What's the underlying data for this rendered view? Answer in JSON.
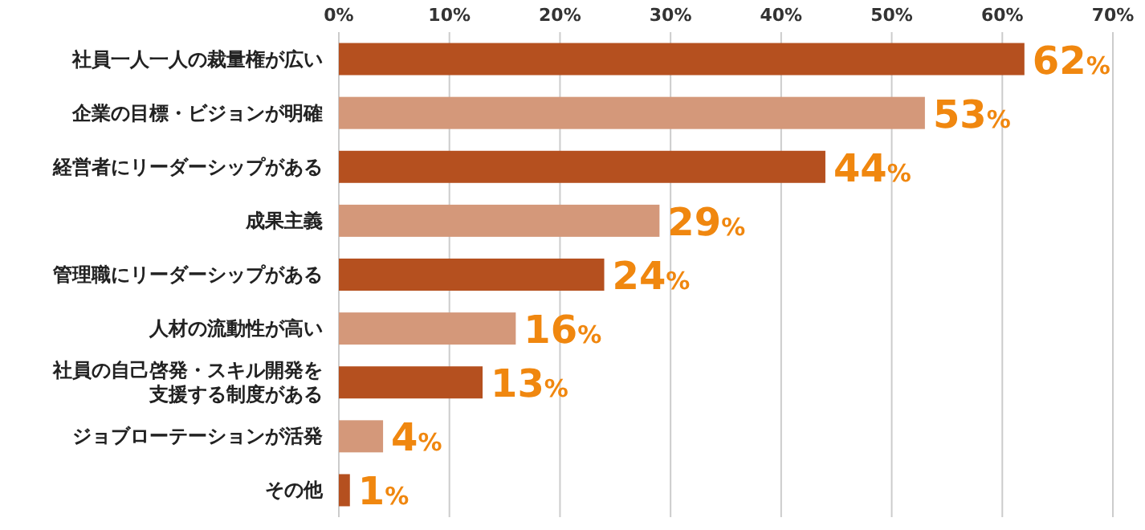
{
  "chart_data": {
    "type": "bar",
    "orientation": "horizontal",
    "categories": [
      "社員一人一人の裁量権が広い",
      "企業の目標・ビジョンが明確",
      "経営者にリーダーシップがある",
      "成果主義",
      "管理職にリーダーシップがある",
      "人材の流動性が高い",
      "社員の自己啓発・スキル開発を支援する制度がある",
      "ジョブローテーションが活発",
      "その他"
    ],
    "values": [
      62,
      53,
      44,
      29,
      24,
      16,
      13,
      4,
      1
    ],
    "value_labels": [
      "62%",
      "53%",
      "44%",
      "29%",
      "24%",
      "16%",
      "13%",
      "4%",
      "1%"
    ],
    "colors": [
      "#b5501f",
      "#d4987a",
      "#b5501f",
      "#d4987a",
      "#b5501f",
      "#d4987a",
      "#b5501f",
      "#d4987a",
      "#b5501f"
    ],
    "xlim": [
      0,
      70
    ],
    "xticks": [
      {
        "value": 0,
        "label": "0%"
      },
      {
        "value": 10,
        "label": "10%"
      },
      {
        "value": 20,
        "label": "20%"
      },
      {
        "value": 30,
        "label": "30%"
      },
      {
        "value": 40,
        "label": "40%"
      },
      {
        "value": 50,
        "label": "50%"
      },
      {
        "value": 60,
        "label": "60%"
      },
      {
        "value": 70,
        "label": "70%"
      }
    ],
    "grid": "x"
  }
}
